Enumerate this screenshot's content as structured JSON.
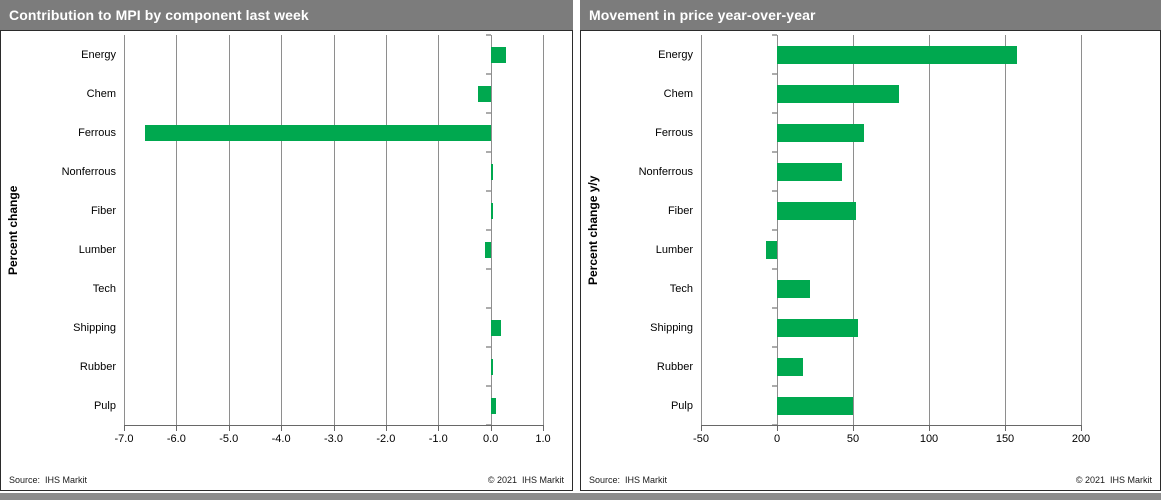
{
  "footer": {
    "source": "Source:  IHS Markit",
    "copyright": "© 2021  IHS Markit"
  },
  "colors": {
    "bar_green": "#00A84F",
    "titlebar_gray": "#7c7c7c",
    "gridline_gray": "#8e8e8e"
  },
  "chart_data": [
    {
      "type": "bar",
      "orientation": "horizontal",
      "title": "Contribution to MPI by component last week",
      "ylabel": "Percent change",
      "xlabel": "",
      "categories": [
        "Energy",
        "Chem",
        "Ferrous",
        "Nonferrous",
        "Fiber",
        "Lumber",
        "Tech",
        "Shipping",
        "Rubber",
        "Pulp"
      ],
      "values": [
        0.3,
        -0.25,
        -6.6,
        0.05,
        0.05,
        -0.1,
        0.0,
        0.2,
        0.05,
        0.1
      ],
      "xmin": -7.0,
      "xmax": 1.0,
      "ticks": [
        -7.0,
        -6.0,
        -5.0,
        -4.0,
        -3.0,
        -2.0,
        -1.0,
        0.0,
        1.0
      ],
      "tick_labels": [
        "-7.0",
        "-6.0",
        "-5.0",
        "-4.0",
        "-3.0",
        "-2.0",
        "-1.0",
        "0.0",
        "1.0"
      ],
      "bar_color": "#00A84F",
      "grid": true,
      "legend": false
    },
    {
      "type": "bar",
      "orientation": "horizontal",
      "title": "Movement in price year-over-year",
      "ylabel": "Percent change y/y",
      "xlabel": "",
      "categories": [
        "Energy",
        "Chem",
        "Ferrous",
        "Nonferrous",
        "Fiber",
        "Lumber",
        "Tech",
        "Shipping",
        "Rubber",
        "Pulp"
      ],
      "values": [
        158,
        80,
        57,
        43,
        52,
        -7,
        22,
        53,
        17,
        50
      ],
      "xmin": -50,
      "xmax": 200,
      "ticks": [
        -50,
        0,
        50,
        100,
        150,
        200
      ],
      "tick_labels": [
        "-50",
        "0",
        "50",
        "100",
        "150",
        "200"
      ],
      "bar_color": "#00A84F",
      "grid": true,
      "legend": false
    }
  ]
}
